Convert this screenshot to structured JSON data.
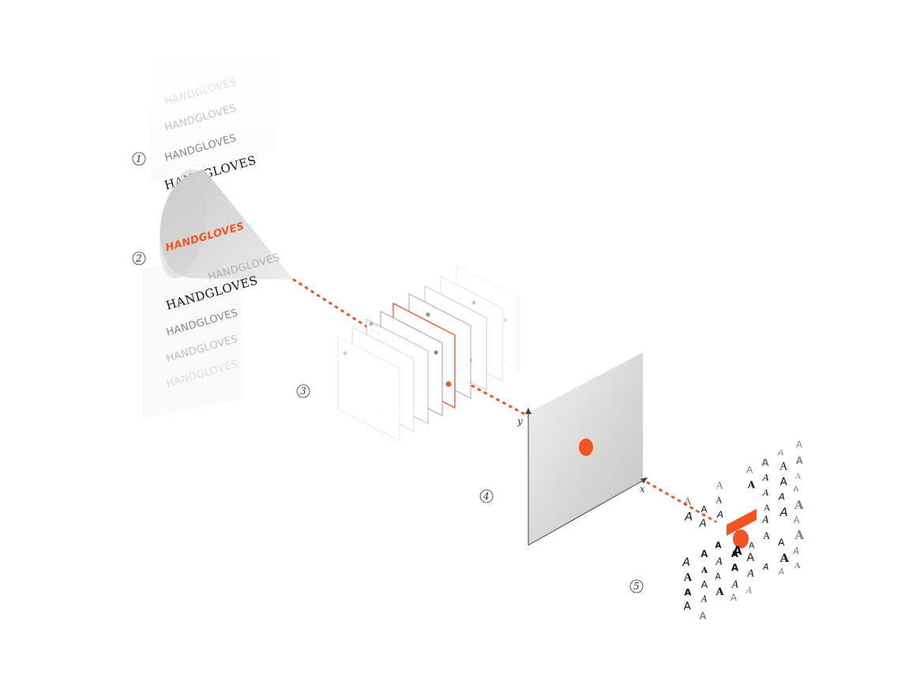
{
  "steps": [
    "1",
    "2",
    "3",
    "4",
    "5"
  ],
  "column1": {
    "words": [
      "HANDGLOVES",
      "HANDGLOVES",
      "HANDGLOVES",
      "HANDGLOVES",
      "HANDGLOVES"
    ]
  },
  "cone": {
    "highlight_word": "HANDGLOVES",
    "label_above": "HANDGLOVES"
  },
  "column2": {
    "words": [
      "HANDGLOVES",
      "HANDGLOVES",
      "HANDGLOVES",
      "HANDGLOVES",
      "HANDGLOVES",
      "HANDGLOVES"
    ]
  },
  "latent_space": {
    "x_axis_label": "x",
    "y_axis_label": "y"
  },
  "glyph_grid": {
    "glyph": "A"
  },
  "colors": {
    "accent": "#F25422",
    "ink": "#111111",
    "plane_gray": "#d9d9d9"
  }
}
